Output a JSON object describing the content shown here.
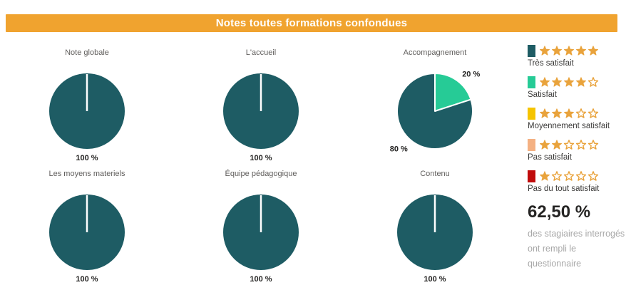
{
  "header": {
    "title": "Notes toutes formations confondues",
    "bg_color": "#F0A32F",
    "text_color": "#FFFFFF"
  },
  "colors": {
    "tres_satisfait": "#1E5C64",
    "satisfait": "#26CB96",
    "moyennement_satisfait": "#F5C400",
    "pas_satisfait": "#F4B183",
    "pas_du_tout_satisfait": "#C00C0C",
    "star_gold": "#E9A33C",
    "chart_title_gray": "#605E5C",
    "label_black": "#252423"
  },
  "chart_data": [
    {
      "type": "pie",
      "title": "Note globale",
      "slices": [
        {
          "label": "100 %",
          "value": 100,
          "color": "#1E5C64"
        }
      ]
    },
    {
      "type": "pie",
      "title": "L'accueil",
      "slices": [
        {
          "label": "100 %",
          "value": 100,
          "color": "#1E5C64"
        }
      ]
    },
    {
      "type": "pie",
      "title": "Accompagnement",
      "slices": [
        {
          "label": "20 %",
          "value": 20,
          "color": "#26CB96"
        },
        {
          "label": "80 %",
          "value": 80,
          "color": "#1E5C64"
        }
      ]
    },
    {
      "type": "pie",
      "title": "Les moyens materiels",
      "slices": [
        {
          "label": "100 %",
          "value": 100,
          "color": "#1E5C64"
        }
      ]
    },
    {
      "type": "pie",
      "title": "Équipe pédagogique",
      "slices": [
        {
          "label": "100 %",
          "value": 100,
          "color": "#1E5C64"
        }
      ]
    },
    {
      "type": "pie",
      "title": "Contenu",
      "slices": [
        {
          "label": "100 %",
          "value": 100,
          "color": "#1E5C64"
        }
      ]
    }
  ],
  "legend": {
    "star_color": "#E9A33C",
    "stars_total": 5,
    "items": [
      {
        "color": "#1E5C64",
        "stars_filled": 5,
        "label": "Très satisfait"
      },
      {
        "color": "#26CB96",
        "stars_filled": 4,
        "label": "Satisfait"
      },
      {
        "color": "#F5C400",
        "stars_filled": 3,
        "label": "Moyennement satisfait"
      },
      {
        "color": "#F4B183",
        "stars_filled": 2,
        "label": "Pas satisfait"
      },
      {
        "color": "#C00C0C",
        "stars_filled": 1,
        "label": "Pas du tout satisfait"
      }
    ]
  },
  "stats": {
    "value": "62,50 %",
    "description_lines": [
      "des stagiaires interrogés",
      "ont rempli le",
      "questionnaire"
    ]
  }
}
